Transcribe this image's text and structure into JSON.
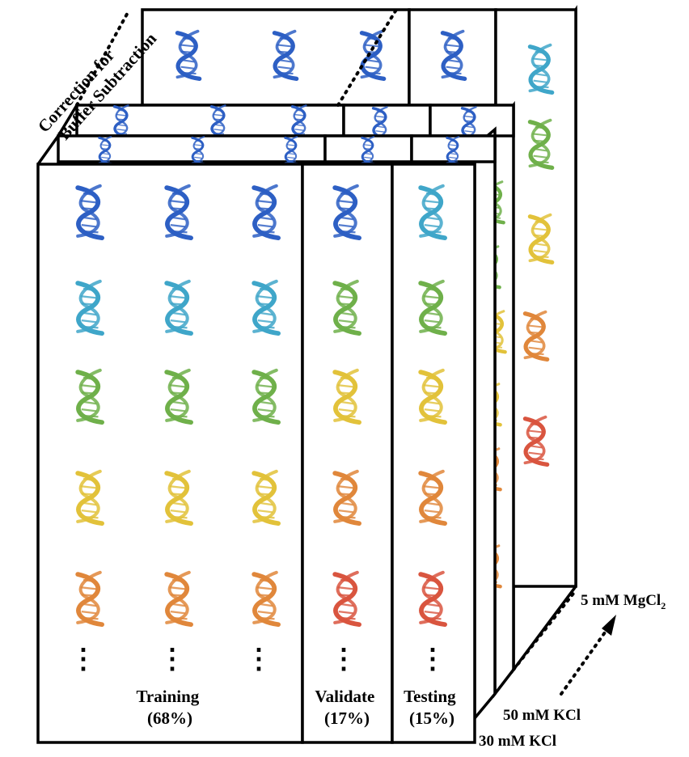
{
  "labels": {
    "correction_line1": "Correction for",
    "correction_line2": "Buffer Subtraction",
    "training_name": "Training",
    "training_pct": "(68%)",
    "validate_name": "Validate",
    "validate_pct": "(17%)",
    "testing_name": "Testing",
    "testing_pct": "(15%)",
    "mgcl2_prefix": "5 mM MgCl",
    "mgcl2_sub": "2",
    "kcl50": "50 mM KCl",
    "kcl30": "30 mM KCl",
    "ellipsis": "⋮"
  },
  "colors": {
    "blue": "#2d5fc4",
    "cyan": "#3fa6c9",
    "green": "#6fb04a",
    "yellow": "#e2c23a",
    "orange": "#e0873b",
    "red": "#d9553f",
    "outline": "#000000"
  }
}
